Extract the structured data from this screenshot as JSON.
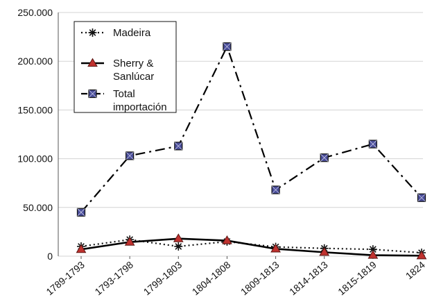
{
  "chart_data": {
    "type": "line",
    "categories": [
      "1789-1793",
      "1793-1798",
      "1799-1803",
      "1804-1808",
      "1809-1813",
      "1814-1813",
      "1815-1819",
      "1824"
    ],
    "y_ticks": [
      "0",
      "50.000",
      "100.000",
      "150.000",
      "200.000",
      "250.000"
    ],
    "ylim": [
      0,
      250000
    ],
    "grid": "horizontal",
    "legend_position": "top-left",
    "series": [
      {
        "name": "Madeira",
        "legend_lines": [
          "Madeira"
        ],
        "line_style": "dotted",
        "marker": "asterisk",
        "line_color": "#111111",
        "marker_color": "#111111",
        "values": [
          10000,
          17000,
          10000,
          15000,
          9500,
          8000,
          7000,
          3500
        ]
      },
      {
        "name": "Sherry & Sanlúcar",
        "legend_lines": [
          "Sherry &",
          "Sanlúcar"
        ],
        "line_style": "solid",
        "marker": "triangle",
        "line_color": "#000000",
        "marker_color": "#c0322f",
        "values": [
          7000,
          14500,
          18000,
          16000,
          7500,
          4000,
          1000,
          500
        ]
      },
      {
        "name": "Total importación",
        "legend_lines": [
          "Total",
          "importación"
        ],
        "line_style": "dash-dot",
        "marker": "square",
        "line_color": "#000000",
        "marker_color": "#4a4e9a",
        "values": [
          45000,
          103000,
          113000,
          215000,
          68000,
          101000,
          115000,
          60000
        ]
      }
    ]
  }
}
